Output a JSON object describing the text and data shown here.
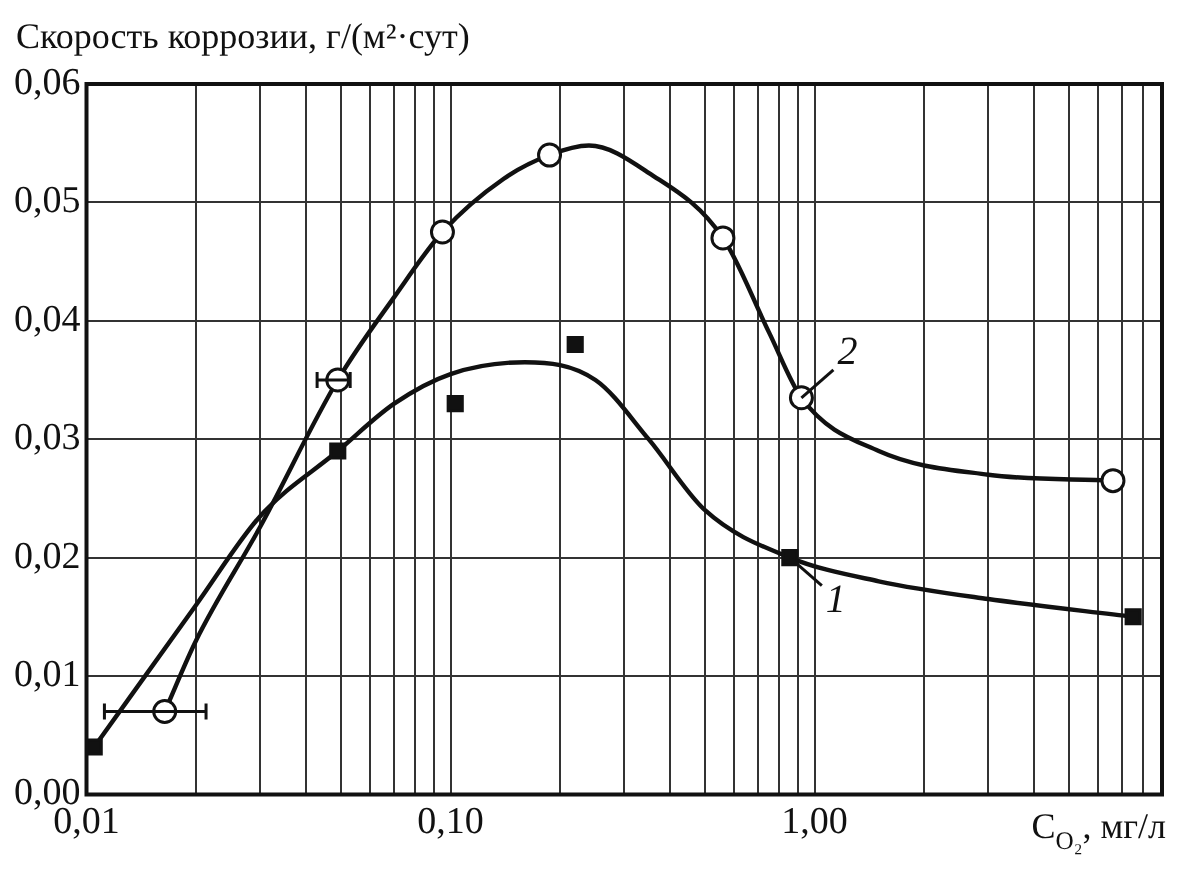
{
  "chart_data": {
    "type": "scatter",
    "ylabel": "Скорость коррозии, г/(м²·сут)",
    "xlabel": "C$_{O₂}$, мг/л",
    "log": "x",
    "xlim": [
      0.01,
      9
    ],
    "ylim": [
      0,
      0.06
    ],
    "xticks": [
      {
        "value": 0.01,
        "label": "0,01"
      },
      {
        "value": 0.02,
        "label": null
      },
      {
        "value": 0.03,
        "label": null
      },
      {
        "value": 0.04,
        "label": null
      },
      {
        "value": 0.05,
        "label": null
      },
      {
        "value": 0.06,
        "label": null
      },
      {
        "value": 0.07,
        "label": null
      },
      {
        "value": 0.08,
        "label": null
      },
      {
        "value": 0.09,
        "label": null
      },
      {
        "value": 0.1,
        "label": "0,10"
      },
      {
        "value": 0.2,
        "label": null
      },
      {
        "value": 0.3,
        "label": null
      },
      {
        "value": 0.4,
        "label": null
      },
      {
        "value": 0.5,
        "label": null
      },
      {
        "value": 0.6,
        "label": null
      },
      {
        "value": 0.7,
        "label": null
      },
      {
        "value": 0.8,
        "label": null
      },
      {
        "value": 0.9,
        "label": null
      },
      {
        "value": 1,
        "label": "1,00"
      },
      {
        "value": 2,
        "label": null
      },
      {
        "value": 3,
        "label": null
      },
      {
        "value": 4,
        "label": null
      },
      {
        "value": 5,
        "label": null
      },
      {
        "value": 6,
        "label": null
      },
      {
        "value": 7,
        "label": null
      },
      {
        "value": 8,
        "label": null
      },
      {
        "value": 9,
        "label": null
      }
    ],
    "yticks": [
      {
        "value": 0,
        "label": "0,00"
      },
      {
        "value": 0.01,
        "label": "0,01"
      },
      {
        "value": 0.02,
        "label": "0,02"
      },
      {
        "value": 0.03,
        "label": "0,03"
      },
      {
        "value": 0.04,
        "label": "0,04"
      },
      {
        "value": 0.05,
        "label": "0,05"
      },
      {
        "value": 0.06,
        "label": "0,06"
      }
    ],
    "grid": true,
    "series": [
      {
        "type": "scatter",
        "marker": "square",
        "color": "#111111",
        "x": [
          0.0105,
          0.049,
          0.103,
          0.22,
          0.855,
          7.5
        ],
        "values": [
          0.004,
          0.029,
          0.033,
          0.038,
          0.02,
          0.015
        ]
      },
      {
        "type": "scatter",
        "marker": "circle",
        "color": "#111111",
        "x": [
          0.0164,
          0.049,
          0.095,
          0.187,
          0.56,
          0.92,
          6.6
        ],
        "values": [
          0.007,
          0.035,
          0.0475,
          0.054,
          0.047,
          0.0335,
          0.0265
        ],
        "xerrors": [
          [
            0.0112,
            0.0213
          ],
          [
            0.043,
            0.053
          ],
          null,
          null,
          null,
          null,
          null
        ]
      },
      {
        "type": "line",
        "name": "1",
        "marker": "none",
        "color": "#111111",
        "x": [
          0.0105,
          0.02,
          0.03,
          0.049,
          0.07,
          0.1,
          0.16,
          0.25,
          0.35,
          0.5,
          0.855,
          1.5,
          3,
          7.5
        ],
        "values": [
          0.004,
          0.016,
          0.0235,
          0.029,
          0.033,
          0.0355,
          0.0365,
          0.035,
          0.03,
          0.024,
          0.02,
          0.018,
          0.0165,
          0.015
        ]
      },
      {
        "type": "line",
        "name": "2",
        "marker": "none",
        "color": "#111111",
        "x": [
          0.0164,
          0.02,
          0.03,
          0.049,
          0.07,
          0.095,
          0.14,
          0.187,
          0.24,
          0.35,
          0.56,
          0.75,
          0.92,
          1.5,
          3,
          6.6
        ],
        "values": [
          0.007,
          0.013,
          0.0226,
          0.035,
          0.042,
          0.0475,
          0.052,
          0.054,
          0.0548,
          0.0525,
          0.047,
          0.039,
          0.0335,
          0.029,
          0.027,
          0.0265
        ]
      }
    ]
  }
}
